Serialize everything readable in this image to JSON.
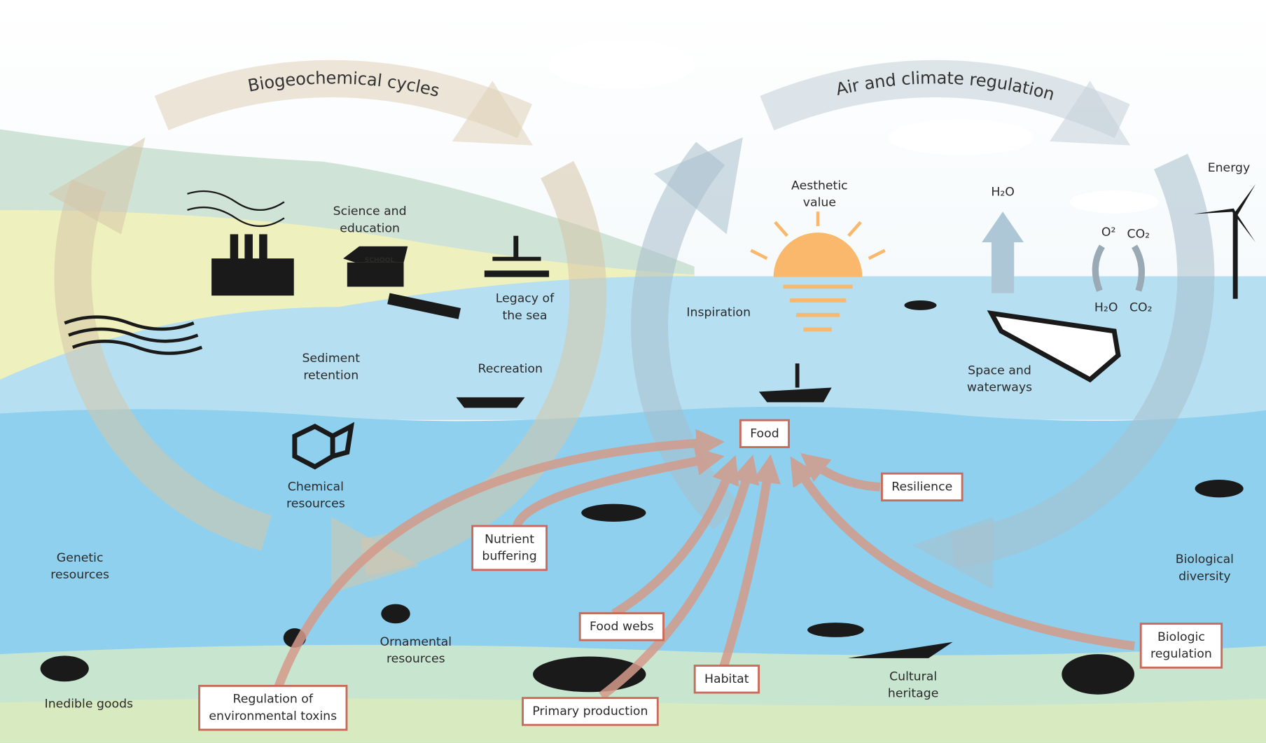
{
  "cycles": [
    "Biogeochemical cycles",
    "Air and climate regulation"
  ],
  "services": [
    {
      "lines": [
        "Energy"
      ]
    },
    {
      "lines": [
        "Aesthetic",
        "value"
      ]
    },
    {
      "lines": [
        "Science and",
        "education"
      ]
    },
    {
      "lines": [
        "Legacy of",
        "the sea"
      ]
    },
    {
      "lines": [
        "Inspiration"
      ]
    },
    {
      "lines": [
        "Sediment",
        "retention"
      ]
    },
    {
      "lines": [
        "Recreation"
      ]
    },
    {
      "lines": [
        "Space and",
        "waterways"
      ]
    },
    {
      "lines": [
        "Chemical",
        "resources"
      ]
    },
    {
      "lines": [
        "Genetic",
        "resources"
      ]
    },
    {
      "lines": [
        "Biological",
        "diversity"
      ]
    },
    {
      "lines": [
        "Ornamental",
        "resources"
      ]
    },
    {
      "lines": [
        "Cultural",
        "heritage"
      ]
    },
    {
      "lines": [
        "Inedible goods"
      ]
    }
  ],
  "boxed_services": [
    {
      "lines": [
        "Food"
      ]
    },
    {
      "lines": [
        "Resilience"
      ]
    },
    {
      "lines": [
        "Nutrient",
        "buffering"
      ]
    },
    {
      "lines": [
        "Food webs"
      ]
    },
    {
      "lines": [
        "Biologic",
        "regulation"
      ]
    },
    {
      "lines": [
        "Habitat"
      ]
    },
    {
      "lines": [
        "Primary production"
      ]
    },
    {
      "lines": [
        "Regulation of",
        "environmental toxins"
      ]
    }
  ],
  "chemistry": {
    "evaporation": "H₂O",
    "cycle": [
      "O²",
      "CO₂",
      "H₂O",
      "CO₂"
    ]
  },
  "school_sign": "SCHOOL"
}
